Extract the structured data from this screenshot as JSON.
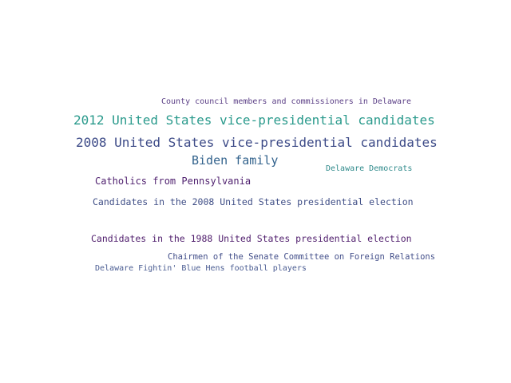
{
  "words": [
    {
      "text": "County council members and commissioners in Delaware",
      "color": "#5b3f86"
    },
    {
      "text": "2012 United States vice-presidential candidates",
      "color": "#2a9a8c"
    },
    {
      "text": "2008 United States vice-presidential candidates",
      "color": "#3c4a87"
    },
    {
      "text": "Biden family",
      "color": "#33638d"
    },
    {
      "text": "Delaware Democrats",
      "color": "#2f8a8b"
    },
    {
      "text": "Catholics from Pennsylvania",
      "color": "#4e1f6e"
    },
    {
      "text": "Candidates in the 2008 United States presidential election",
      "color": "#3f4e86"
    },
    {
      "text": "Candidates in the 1988 United States presidential election",
      "color": "#4f1d6c"
    },
    {
      "text": "Chairmen of the Senate Committee on Foreign Relations",
      "color": "#434f8a"
    },
    {
      "text": "Delaware Fightin' Blue Hens football players",
      "color": "#4a5c92"
    }
  ]
}
